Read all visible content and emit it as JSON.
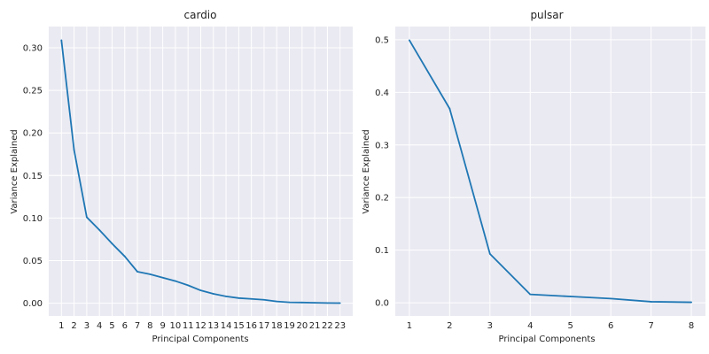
{
  "chart_data": [
    {
      "type": "line",
      "title": "cardio",
      "xlabel": "Principal Components",
      "ylabel": "Variance Explained",
      "x": [
        1,
        2,
        3,
        4,
        5,
        6,
        7,
        8,
        9,
        10,
        11,
        12,
        13,
        14,
        15,
        16,
        17,
        18,
        19,
        20,
        21,
        22,
        23
      ],
      "xticks": [
        1,
        2,
        3,
        4,
        5,
        6,
        7,
        8,
        9,
        10,
        11,
        12,
        13,
        14,
        15,
        16,
        17,
        18,
        19,
        20,
        21,
        22,
        23
      ],
      "yticks": [
        0.0,
        0.05,
        0.1,
        0.15,
        0.2,
        0.25,
        0.3
      ],
      "ytick_labels": [
        "0.00",
        "0.05",
        "0.10",
        "0.15",
        "0.20",
        "0.25",
        "0.30"
      ],
      "xlim": [
        0.0,
        24.0
      ],
      "ylim": [
        -0.015,
        0.325
      ],
      "grid": true,
      "color": "#1f77b4",
      "values": [
        0.309,
        0.18,
        0.101,
        0.086,
        0.07,
        0.055,
        0.037,
        0.034,
        0.03,
        0.026,
        0.021,
        0.015,
        0.011,
        0.008,
        0.006,
        0.005,
        0.004,
        0.002,
        0.001,
        0.0008,
        0.0005,
        0.0002,
        0.0001
      ]
    },
    {
      "type": "line",
      "title": "pulsar",
      "xlabel": "Principal Components",
      "ylabel": "Variance Explained",
      "x": [
        1,
        2,
        3,
        4,
        5,
        6,
        7,
        8
      ],
      "xticks": [
        1,
        2,
        3,
        4,
        5,
        6,
        7,
        8
      ],
      "yticks": [
        0.0,
        0.1,
        0.2,
        0.3,
        0.4,
        0.5
      ],
      "ytick_labels": [
        "0.0",
        "0.1",
        "0.2",
        "0.3",
        "0.4",
        "0.5"
      ],
      "xlim": [
        0.65,
        8.35
      ],
      "ylim": [
        -0.025,
        0.525
      ],
      "grid": true,
      "color": "#1f77b4",
      "values": [
        0.499,
        0.369,
        0.093,
        0.016,
        0.012,
        0.008,
        0.002,
        0.001
      ]
    }
  ]
}
